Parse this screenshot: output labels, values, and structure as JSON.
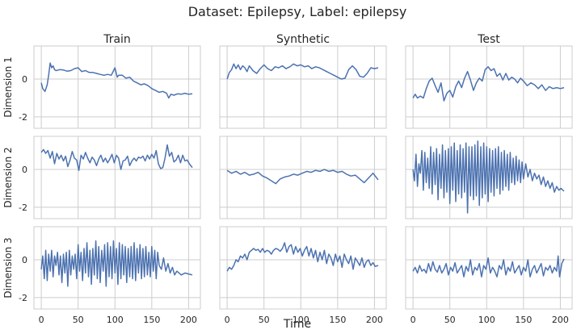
{
  "figure": {
    "title": "Dataset: Epilepsy, Label: epilepsy",
    "xlabel": "Time"
  },
  "colors": {
    "line": "#4c72b0",
    "grid": "#cccccc",
    "frame": "#cccccc"
  },
  "chart_data": {
    "type": "line",
    "grid": true,
    "columns": [
      "Train",
      "Synthetic",
      "Test"
    ],
    "rows": [
      "Dimension 1",
      "Dimension 2",
      "Dimension 3"
    ],
    "xlim": [
      -10,
      216
    ],
    "ylim": [
      -2.6,
      1.75
    ],
    "x_ticks": [
      0,
      50,
      100,
      150,
      200
    ],
    "y_ticks": [
      -2,
      0
    ],
    "panels": [
      {
        "row": "Dimension 1",
        "column": "Train",
        "x": [
          0,
          2,
          5,
          8,
          10,
          12,
          14,
          16,
          18,
          20,
          25,
          30,
          35,
          40,
          45,
          50,
          55,
          60,
          65,
          70,
          75,
          80,
          85,
          90,
          95,
          100,
          103,
          105,
          110,
          115,
          120,
          125,
          130,
          135,
          140,
          145,
          150,
          155,
          160,
          165,
          170,
          173,
          176,
          180,
          185,
          190,
          195,
          200,
          205
        ],
        "y": [
          -0.2,
          -0.5,
          -0.65,
          -0.3,
          0.2,
          0.85,
          0.6,
          0.7,
          0.5,
          0.45,
          0.5,
          0.48,
          0.42,
          0.45,
          0.55,
          0.6,
          0.4,
          0.45,
          0.35,
          0.35,
          0.3,
          0.25,
          0.2,
          0.25,
          0.2,
          0.6,
          0.1,
          0.2,
          0.2,
          0.05,
          0.1,
          -0.1,
          -0.2,
          -0.3,
          -0.25,
          -0.35,
          -0.5,
          -0.6,
          -0.7,
          -0.65,
          -0.75,
          -1.0,
          -0.8,
          -0.85,
          -0.78,
          -0.8,
          -0.75,
          -0.8,
          -0.78
        ]
      },
      {
        "row": "Dimension 1",
        "column": "Synthetic",
        "x": [
          0,
          3,
          6,
          9,
          12,
          15,
          18,
          21,
          24,
          27,
          30,
          35,
          40,
          45,
          50,
          55,
          60,
          65,
          70,
          75,
          80,
          85,
          90,
          95,
          100,
          105,
          110,
          115,
          120,
          125,
          130,
          135,
          140,
          145,
          150,
          155,
          160,
          165,
          170,
          175,
          180,
          185,
          190,
          195,
          200,
          205
        ],
        "y": [
          0.0,
          0.35,
          0.5,
          0.8,
          0.55,
          0.75,
          0.5,
          0.7,
          0.6,
          0.4,
          0.7,
          0.45,
          0.3,
          0.55,
          0.75,
          0.55,
          0.45,
          0.65,
          0.6,
          0.7,
          0.55,
          0.65,
          0.8,
          0.7,
          0.75,
          0.65,
          0.7,
          0.55,
          0.65,
          0.6,
          0.5,
          0.4,
          0.3,
          0.2,
          0.1,
          0.0,
          0.05,
          0.5,
          0.7,
          0.5,
          0.15,
          0.1,
          0.3,
          0.6,
          0.55,
          0.6
        ]
      },
      {
        "row": "Dimension 1",
        "column": "Test",
        "x": [
          0,
          3,
          6,
          10,
          14,
          18,
          22,
          26,
          30,
          34,
          38,
          42,
          46,
          50,
          54,
          58,
          62,
          66,
          70,
          74,
          78,
          82,
          86,
          90,
          94,
          98,
          102,
          106,
          110,
          114,
          118,
          122,
          126,
          130,
          134,
          138,
          142,
          146,
          150,
          155,
          160,
          165,
          170,
          175,
          180,
          185,
          190,
          195,
          200,
          205
        ],
        "y": [
          -1.0,
          -0.8,
          -1.0,
          -0.9,
          -1.0,
          -0.5,
          -0.1,
          0.05,
          -0.35,
          -0.7,
          -0.2,
          -1.15,
          -0.75,
          -0.6,
          -0.95,
          -0.4,
          -0.1,
          -0.45,
          0.05,
          0.4,
          -0.05,
          -0.6,
          -0.2,
          0.05,
          -0.1,
          0.5,
          0.65,
          0.45,
          0.55,
          0.15,
          0.3,
          -0.05,
          0.3,
          -0.05,
          0.1,
          0.0,
          -0.2,
          0.05,
          -0.1,
          -0.35,
          -0.2,
          -0.3,
          -0.5,
          -0.3,
          -0.6,
          -0.4,
          -0.5,
          -0.45,
          -0.5,
          -0.45
        ]
      },
      {
        "row": "Dimension 2",
        "column": "Train",
        "x": [
          0,
          3,
          6,
          9,
          12,
          15,
          18,
          21,
          24,
          27,
          30,
          33,
          36,
          39,
          42,
          45,
          48,
          51,
          54,
          57,
          60,
          63,
          66,
          69,
          72,
          75,
          78,
          81,
          84,
          87,
          90,
          93,
          96,
          99,
          102,
          105,
          108,
          111,
          114,
          117,
          120,
          123,
          126,
          129,
          132,
          135,
          138,
          141,
          144,
          147,
          150,
          153,
          156,
          159,
          162,
          165,
          168,
          171,
          174,
          177,
          180,
          183,
          186,
          189,
          192,
          195,
          198,
          201,
          205
        ],
        "y": [
          0.9,
          1.05,
          0.85,
          1.0,
          0.6,
          0.95,
          0.3,
          0.85,
          0.55,
          0.75,
          0.45,
          0.7,
          0.15,
          0.5,
          0.95,
          0.6,
          0.5,
          -0.05,
          0.75,
          0.55,
          0.9,
          0.6,
          0.35,
          0.65,
          0.5,
          0.2,
          0.55,
          0.75,
          0.4,
          0.6,
          0.35,
          0.55,
          0.8,
          0.35,
          0.75,
          0.6,
          0.0,
          0.45,
          0.5,
          0.7,
          0.2,
          0.45,
          0.6,
          0.45,
          0.65,
          0.6,
          0.7,
          0.45,
          0.75,
          0.55,
          0.8,
          0.6,
          1.0,
          0.3,
          0.05,
          0.1,
          0.6,
          1.3,
          0.7,
          0.9,
          0.4,
          0.5,
          0.75,
          0.35,
          0.75,
          0.45,
          0.5,
          0.3,
          0.1
        ]
      },
      {
        "row": "Dimension 2",
        "column": "Synthetic",
        "x": [
          0,
          6,
          12,
          18,
          24,
          30,
          36,
          42,
          48,
          54,
          60,
          66,
          72,
          78,
          84,
          90,
          96,
          102,
          108,
          114,
          120,
          126,
          132,
          138,
          144,
          150,
          156,
          162,
          168,
          174,
          180,
          186,
          192,
          198,
          205
        ],
        "y": [
          -0.05,
          -0.2,
          -0.1,
          -0.25,
          -0.15,
          -0.3,
          -0.25,
          -0.15,
          -0.35,
          -0.45,
          -0.6,
          -0.75,
          -0.5,
          -0.4,
          -0.35,
          -0.25,
          -0.3,
          -0.2,
          -0.1,
          -0.15,
          -0.05,
          -0.1,
          0.0,
          -0.1,
          -0.05,
          -0.15,
          -0.1,
          -0.25,
          -0.35,
          -0.3,
          -0.5,
          -0.7,
          -0.45,
          -0.2,
          -0.55
        ]
      },
      {
        "row": "Dimension 2",
        "column": "Test",
        "x": [
          0,
          2,
          4,
          6,
          8,
          10,
          12,
          14,
          16,
          18,
          20,
          22,
          24,
          26,
          28,
          30,
          32,
          34,
          36,
          38,
          40,
          42,
          44,
          46,
          48,
          50,
          52,
          54,
          56,
          58,
          60,
          62,
          64,
          66,
          68,
          70,
          72,
          74,
          76,
          78,
          80,
          82,
          84,
          86,
          88,
          90,
          92,
          94,
          96,
          98,
          100,
          102,
          104,
          106,
          108,
          110,
          112,
          114,
          116,
          118,
          120,
          122,
          124,
          126,
          128,
          130,
          132,
          134,
          136,
          138,
          140,
          142,
          144,
          146,
          148,
          150,
          153,
          156,
          159,
          162,
          165,
          168,
          171,
          174,
          177,
          180,
          183,
          186,
          189,
          192,
          195,
          198,
          201,
          205
        ],
        "y": [
          0.0,
          -0.6,
          0.8,
          -0.9,
          0.3,
          -0.2,
          1.0,
          -1.1,
          0.9,
          -0.7,
          0.6,
          -1.0,
          1.2,
          -1.3,
          0.9,
          -0.8,
          1.1,
          -1.6,
          0.8,
          -1.0,
          1.3,
          -1.5,
          1.0,
          -1.2,
          1.1,
          -1.8,
          1.2,
          -1.1,
          1.4,
          -1.7,
          1.0,
          -1.3,
          1.3,
          -1.5,
          1.1,
          -1.2,
          1.4,
          -2.3,
          1.2,
          -1.4,
          1.2,
          -1.6,
          1.3,
          -1.4,
          1.5,
          -1.9,
          1.2,
          -1.5,
          1.4,
          -1.3,
          1.2,
          -1.7,
          1.1,
          -1.2,
          1.0,
          -1.4,
          1.1,
          -1.0,
          1.2,
          -1.3,
          0.9,
          -1.1,
          1.0,
          -0.9,
          0.8,
          -1.1,
          0.9,
          -0.7,
          0.6,
          -0.8,
          0.7,
          -0.6,
          0.5,
          -0.7,
          0.4,
          -0.5,
          0.3,
          -0.4,
          0.0,
          -0.6,
          -0.2,
          -0.5,
          -0.3,
          -0.8,
          -0.4,
          -0.9,
          -0.6,
          -1.0,
          -0.7,
          -1.2,
          -0.9,
          -1.1,
          -1.0,
          -1.15
        ]
      },
      {
        "row": "Dimension 3",
        "column": "Train",
        "x": [
          0,
          2,
          4,
          6,
          8,
          10,
          12,
          14,
          16,
          18,
          20,
          22,
          24,
          26,
          28,
          30,
          32,
          34,
          36,
          38,
          40,
          42,
          44,
          46,
          48,
          50,
          52,
          54,
          56,
          58,
          60,
          62,
          64,
          66,
          68,
          70,
          72,
          74,
          76,
          78,
          80,
          82,
          84,
          86,
          88,
          90,
          92,
          94,
          96,
          98,
          100,
          102,
          104,
          106,
          108,
          110,
          112,
          114,
          116,
          118,
          120,
          122,
          124,
          126,
          128,
          130,
          132,
          134,
          136,
          138,
          140,
          142,
          144,
          146,
          148,
          150,
          152,
          154,
          156,
          158,
          160,
          163,
          166,
          169,
          172,
          175,
          178,
          181,
          184,
          187,
          190,
          195,
          200,
          205
        ],
        "y": [
          -0.5,
          0.2,
          -1.0,
          0.5,
          -1.1,
          0.3,
          -0.6,
          0.5,
          -0.9,
          0.2,
          -0.3,
          0.4,
          -0.8,
          0.2,
          -1.2,
          0.3,
          -0.7,
          0.4,
          -1.4,
          0.5,
          -0.8,
          0.2,
          -0.5,
          0.3,
          -1.0,
          0.8,
          -0.6,
          0.4,
          -1.1,
          0.6,
          -0.7,
          0.9,
          -0.9,
          0.5,
          -1.3,
          0.6,
          -0.8,
          1.0,
          -1.0,
          0.7,
          -1.2,
          0.5,
          -0.6,
          0.8,
          -1.4,
          0.9,
          -0.9,
          0.7,
          -1.0,
          1.0,
          -0.7,
          0.6,
          -1.3,
          0.9,
          -1.0,
          0.8,
          -0.8,
          0.7,
          -1.2,
          0.6,
          -0.9,
          0.7,
          -1.0,
          0.9,
          -1.1,
          0.6,
          -0.7,
          0.8,
          -1.0,
          0.6,
          -0.9,
          0.7,
          -0.8,
          0.4,
          -0.9,
          0.7,
          -0.6,
          0.5,
          -1.0,
          0.4,
          -0.3,
          -0.5,
          0.1,
          -0.6,
          -0.2,
          -0.7,
          -0.4,
          -0.8,
          -0.6,
          -0.7,
          -0.8,
          -0.7,
          -0.75,
          -0.8
        ]
      },
      {
        "row": "Dimension 3",
        "column": "Synthetic",
        "x": [
          0,
          3,
          6,
          9,
          12,
          15,
          18,
          21,
          24,
          27,
          30,
          33,
          36,
          39,
          42,
          45,
          48,
          51,
          54,
          57,
          60,
          63,
          66,
          69,
          72,
          75,
          78,
          81,
          84,
          87,
          90,
          93,
          96,
          99,
          102,
          105,
          108,
          111,
          114,
          117,
          120,
          123,
          126,
          129,
          132,
          135,
          138,
          141,
          144,
          147,
          150,
          153,
          156,
          159,
          162,
          165,
          168,
          171,
          174,
          177,
          180,
          183,
          186,
          189,
          192,
          195,
          198,
          201,
          205
        ],
        "y": [
          -0.6,
          -0.4,
          -0.5,
          -0.3,
          0.0,
          -0.1,
          0.2,
          0.1,
          0.3,
          0.0,
          0.4,
          0.5,
          0.6,
          0.5,
          0.55,
          0.4,
          0.6,
          0.4,
          0.5,
          0.45,
          0.3,
          0.5,
          0.6,
          0.55,
          0.45,
          0.6,
          0.9,
          0.4,
          0.7,
          0.8,
          0.3,
          0.7,
          0.4,
          0.6,
          0.2,
          0.5,
          0.7,
          0.2,
          0.6,
          0.1,
          0.5,
          -0.1,
          0.4,
          0.0,
          0.5,
          -0.2,
          0.3,
          0.1,
          -0.3,
          0.3,
          -0.1,
          0.2,
          -0.4,
          0.3,
          0.0,
          -0.2,
          0.2,
          -0.5,
          0.1,
          -0.1,
          -0.3,
          0.1,
          -0.4,
          -0.1,
          0.0,
          -0.3,
          -0.15,
          -0.35,
          -0.3
        ]
      },
      {
        "row": "Dimension 3",
        "column": "Test",
        "x": [
          0,
          3,
          6,
          9,
          12,
          15,
          18,
          21,
          24,
          27,
          30,
          33,
          36,
          39,
          42,
          45,
          48,
          51,
          54,
          57,
          60,
          63,
          66,
          69,
          72,
          75,
          78,
          81,
          84,
          87,
          90,
          93,
          96,
          99,
          102,
          105,
          108,
          111,
          114,
          117,
          120,
          123,
          126,
          129,
          132,
          135,
          138,
          141,
          144,
          147,
          150,
          153,
          156,
          159,
          162,
          165,
          168,
          171,
          174,
          177,
          180,
          183,
          186,
          189,
          192,
          195,
          197,
          199,
          202,
          205
        ],
        "y": [
          -0.6,
          -0.4,
          -0.7,
          -0.3,
          -0.6,
          -0.5,
          -0.7,
          -0.2,
          -0.6,
          -0.1,
          -0.5,
          -0.65,
          -0.3,
          -0.7,
          -0.5,
          -0.2,
          -0.8,
          -0.4,
          -0.6,
          -0.15,
          -0.7,
          -0.5,
          -0.3,
          -0.9,
          -0.35,
          -0.6,
          0.0,
          -0.8,
          -0.4,
          -0.55,
          -0.2,
          -0.9,
          -0.3,
          -0.5,
          0.1,
          -0.7,
          -0.4,
          -0.6,
          -0.9,
          -0.3,
          -0.5,
          0.0,
          -0.8,
          -0.4,
          -0.6,
          -0.1,
          -0.7,
          -0.5,
          -0.3,
          -0.8,
          -0.4,
          -0.6,
          0.0,
          -0.9,
          -0.5,
          -0.3,
          -0.7,
          -0.45,
          -0.2,
          -0.85,
          -0.4,
          -0.55,
          -0.3,
          -0.7,
          -0.4,
          -0.6,
          0.2,
          -0.9,
          -0.2,
          0.05
        ]
      }
    ]
  }
}
